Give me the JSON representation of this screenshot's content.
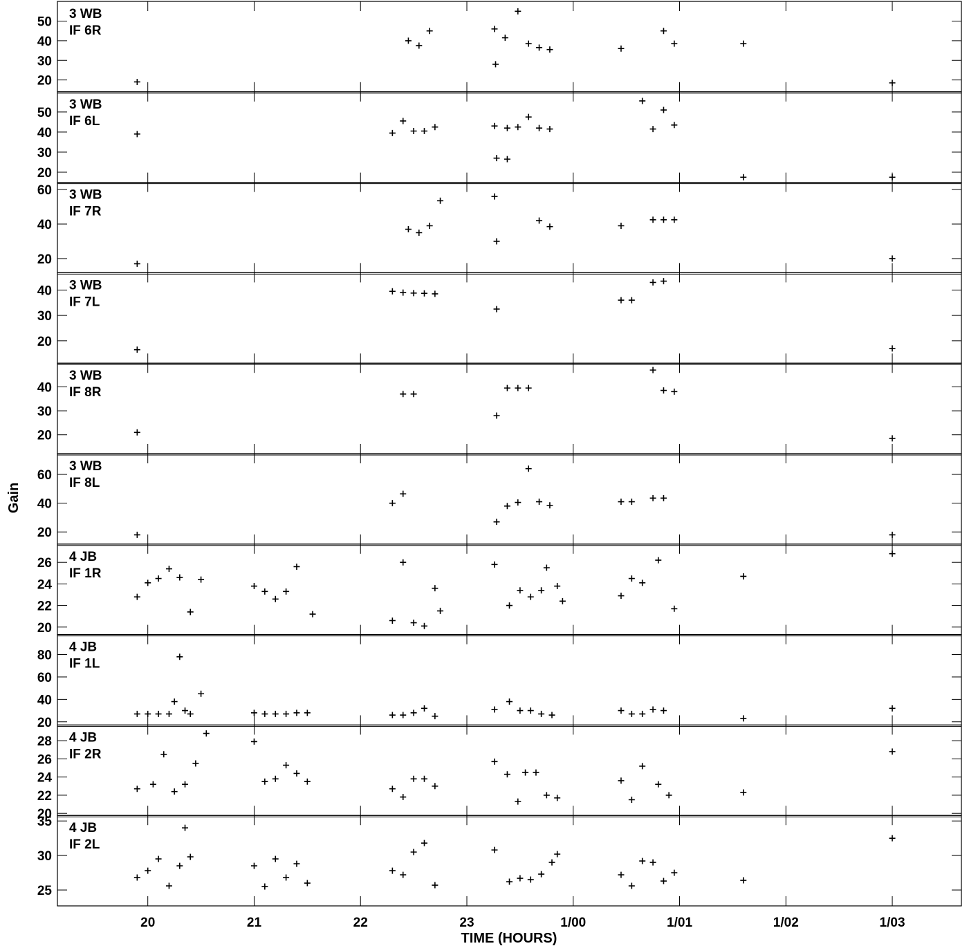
{
  "chart_data": {
    "type": "scatter",
    "ylabel": "Gain",
    "xlabel": "TIME (HOURS)",
    "x_unit": "hours (24 = 1/00)",
    "xlim": [
      19.15,
      27.65
    ],
    "x_ticks": [
      {
        "value": 20,
        "label": "20"
      },
      {
        "value": 21,
        "label": "21"
      },
      {
        "value": 22,
        "label": "22"
      },
      {
        "value": 23,
        "label": "23"
      },
      {
        "value": 24,
        "label": "1/00"
      },
      {
        "value": 25,
        "label": "1/01"
      },
      {
        "value": 26,
        "label": "1/02"
      },
      {
        "value": 27,
        "label": "1/03"
      }
    ],
    "panels": [
      {
        "line1": "3 WB",
        "line2": "IF 6R",
        "ylim": [
          15,
          59
        ],
        "yticks": [
          20,
          30,
          40,
          50
        ],
        "tick_labels": [
          "20",
          "30",
          "40",
          "50"
        ],
        "points": [
          [
            19.9,
            19
          ],
          [
            22.45,
            40
          ],
          [
            22.55,
            37.5
          ],
          [
            22.65,
            45
          ],
          [
            23.26,
            46
          ],
          [
            23.27,
            28
          ],
          [
            23.36,
            41.5
          ],
          [
            23.48,
            55
          ],
          [
            23.58,
            38.5
          ],
          [
            23.68,
            36.5
          ],
          [
            23.78,
            35.5
          ],
          [
            24.45,
            36
          ],
          [
            24.85,
            45
          ],
          [
            24.95,
            38.5
          ],
          [
            25.6,
            38.5
          ],
          [
            27.0,
            18.5
          ]
        ]
      },
      {
        "line1": "3 WB",
        "line2": "IF 6L",
        "ylim": [
          16,
          59
        ],
        "yticks": [
          20,
          30,
          40,
          50
        ],
        "tick_labels": [
          "20",
          "30",
          "40",
          "50"
        ],
        "points": [
          [
            19.9,
            39
          ],
          [
            22.3,
            39.5
          ],
          [
            22.4,
            45.5
          ],
          [
            22.5,
            40.5
          ],
          [
            22.6,
            40.5
          ],
          [
            22.7,
            42.5
          ],
          [
            23.26,
            43
          ],
          [
            23.28,
            27
          ],
          [
            23.38,
            26.5
          ],
          [
            23.38,
            42
          ],
          [
            23.48,
            42.5
          ],
          [
            23.58,
            47.5
          ],
          [
            23.68,
            42
          ],
          [
            23.78,
            41.5
          ],
          [
            24.65,
            55.5
          ],
          [
            24.75,
            41.5
          ],
          [
            24.85,
            51
          ],
          [
            24.95,
            43.5
          ],
          [
            25.6,
            17.5
          ],
          [
            27.0,
            17.5
          ]
        ]
      },
      {
        "line1": "3 WB",
        "line2": "IF 7R",
        "ylim": [
          13,
          63
        ],
        "yticks": [
          20,
          40,
          60
        ],
        "tick_labels": [
          "20",
          "40",
          "60"
        ],
        "points": [
          [
            19.9,
            17
          ],
          [
            22.45,
            37
          ],
          [
            22.55,
            35
          ],
          [
            22.65,
            39
          ],
          [
            22.75,
            53.5
          ],
          [
            23.26,
            56
          ],
          [
            23.28,
            30
          ],
          [
            23.68,
            42
          ],
          [
            23.78,
            38.5
          ],
          [
            24.45,
            39
          ],
          [
            24.75,
            42.5
          ],
          [
            24.85,
            42.5
          ],
          [
            24.95,
            42.5
          ],
          [
            27.0,
            20
          ]
        ]
      },
      {
        "line1": "3 WB",
        "line2": "IF 7L",
        "ylim": [
          12,
          46
        ],
        "yticks": [
          20,
          30,
          40
        ],
        "tick_labels": [
          "20",
          "30",
          "40"
        ],
        "points": [
          [
            19.9,
            16.5
          ],
          [
            22.3,
            39.5
          ],
          [
            22.4,
            39
          ],
          [
            22.5,
            38.8
          ],
          [
            22.6,
            38.7
          ],
          [
            22.7,
            38.5
          ],
          [
            23.28,
            32.5
          ],
          [
            24.45,
            36
          ],
          [
            24.55,
            36
          ],
          [
            24.75,
            43
          ],
          [
            24.85,
            43.5
          ],
          [
            27.0,
            17
          ]
        ]
      },
      {
        "line1": "3 WB",
        "line2": "IF 8R",
        "ylim": [
          13,
          49
        ],
        "yticks": [
          20,
          30,
          40
        ],
        "tick_labels": [
          "20",
          "30",
          "40"
        ],
        "points": [
          [
            19.9,
            21
          ],
          [
            22.4,
            37
          ],
          [
            22.5,
            37
          ],
          [
            23.28,
            28
          ],
          [
            23.38,
            39.5
          ],
          [
            23.48,
            39.5
          ],
          [
            23.58,
            39.5
          ],
          [
            24.75,
            47
          ],
          [
            24.85,
            38.5
          ],
          [
            24.95,
            38
          ],
          [
            27.0,
            18.5
          ]
        ]
      },
      {
        "line1": "3 WB",
        "line2": "IF 8L",
        "ylim": [
          13,
          73
        ],
        "yticks": [
          20,
          40,
          60
        ],
        "tick_labels": [
          "20",
          "40",
          "60"
        ],
        "points": [
          [
            19.9,
            18
          ],
          [
            22.3,
            40
          ],
          [
            22.4,
            46.5
          ],
          [
            23.28,
            27
          ],
          [
            23.38,
            38
          ],
          [
            23.48,
            40.5
          ],
          [
            23.58,
            64
          ],
          [
            23.68,
            41
          ],
          [
            23.78,
            38.5
          ],
          [
            24.45,
            41
          ],
          [
            24.55,
            41
          ],
          [
            24.75,
            43.5
          ],
          [
            24.85,
            43.5
          ],
          [
            27.0,
            18
          ]
        ]
      },
      {
        "line1": "4 JB",
        "line2": "IF 1R",
        "ylim": [
          19.5,
          27.5
        ],
        "yticks": [
          20,
          22,
          24,
          26
        ],
        "tick_labels": [
          "20",
          "22",
          "24",
          "26"
        ],
        "points": [
          [
            19.9,
            22.8
          ],
          [
            20.0,
            24.1
          ],
          [
            20.1,
            24.5
          ],
          [
            20.2,
            25.4
          ],
          [
            20.3,
            24.6
          ],
          [
            20.4,
            21.4
          ],
          [
            20.5,
            24.4
          ],
          [
            21.0,
            23.8
          ],
          [
            21.1,
            23.3
          ],
          [
            21.2,
            22.6
          ],
          [
            21.3,
            23.3
          ],
          [
            21.4,
            25.6
          ],
          [
            21.55,
            21.2
          ],
          [
            22.3,
            20.6
          ],
          [
            22.4,
            26.0
          ],
          [
            22.5,
            20.4
          ],
          [
            22.6,
            20.1
          ],
          [
            22.7,
            23.6
          ],
          [
            22.75,
            21.5
          ],
          [
            23.26,
            25.8
          ],
          [
            23.4,
            22.0
          ],
          [
            23.5,
            23.4
          ],
          [
            23.6,
            22.8
          ],
          [
            23.7,
            23.4
          ],
          [
            23.75,
            25.5
          ],
          [
            23.85,
            23.8
          ],
          [
            23.9,
            22.4
          ],
          [
            24.45,
            22.9
          ],
          [
            24.55,
            24.5
          ],
          [
            24.65,
            24.1
          ],
          [
            24.8,
            26.2
          ],
          [
            24.95,
            21.7
          ],
          [
            25.6,
            24.7
          ],
          [
            27.0,
            26.8
          ]
        ]
      },
      {
        "line1": "4 JB",
        "line2": "IF 1L",
        "ylim": [
          19,
          96
        ],
        "yticks": [
          20,
          40,
          60,
          80
        ],
        "tick_labels": [
          "20",
          "40",
          "60",
          "80"
        ],
        "points": [
          [
            19.9,
            27
          ],
          [
            20.0,
            27
          ],
          [
            20.1,
            27
          ],
          [
            20.2,
            27
          ],
          [
            20.25,
            38
          ],
          [
            20.3,
            78
          ],
          [
            20.35,
            30
          ],
          [
            20.4,
            27
          ],
          [
            20.5,
            45
          ],
          [
            21.0,
            28
          ],
          [
            21.1,
            27
          ],
          [
            21.2,
            27
          ],
          [
            21.3,
            27
          ],
          [
            21.4,
            28
          ],
          [
            21.5,
            28
          ],
          [
            22.3,
            26
          ],
          [
            22.4,
            26
          ],
          [
            22.5,
            28
          ],
          [
            22.6,
            32
          ],
          [
            22.7,
            25
          ],
          [
            23.26,
            31
          ],
          [
            23.4,
            38
          ],
          [
            23.5,
            30
          ],
          [
            23.6,
            30
          ],
          [
            23.7,
            27
          ],
          [
            23.8,
            26
          ],
          [
            24.45,
            30
          ],
          [
            24.55,
            27
          ],
          [
            24.65,
            27
          ],
          [
            24.75,
            31
          ],
          [
            24.85,
            30
          ],
          [
            25.6,
            23
          ],
          [
            27.0,
            32
          ]
        ]
      },
      {
        "line1": "4 JB",
        "line2": "IF 2R",
        "ylim": [
          20,
          29.5
        ],
        "yticks": [
          20,
          22,
          24,
          26,
          28
        ],
        "tick_labels": [
          "20",
          "22",
          "24",
          "26",
          "28"
        ],
        "points": [
          [
            19.9,
            22.7
          ],
          [
            20.05,
            23.2
          ],
          [
            20.15,
            26.5
          ],
          [
            20.25,
            22.4
          ],
          [
            20.35,
            23.2
          ],
          [
            20.45,
            25.5
          ],
          [
            20.55,
            28.8
          ],
          [
            21.0,
            27.9
          ],
          [
            21.1,
            23.5
          ],
          [
            21.2,
            23.8
          ],
          [
            21.3,
            25.3
          ],
          [
            21.4,
            24.4
          ],
          [
            21.5,
            23.5
          ],
          [
            22.3,
            22.7
          ],
          [
            22.4,
            21.8
          ],
          [
            22.5,
            23.8
          ],
          [
            22.6,
            23.8
          ],
          [
            22.7,
            23.0
          ],
          [
            23.26,
            25.7
          ],
          [
            23.38,
            24.3
          ],
          [
            23.48,
            21.3
          ],
          [
            23.55,
            24.5
          ],
          [
            23.65,
            24.5
          ],
          [
            23.75,
            22.0
          ],
          [
            23.85,
            21.7
          ],
          [
            24.45,
            23.6
          ],
          [
            24.55,
            21.5
          ],
          [
            24.65,
            25.2
          ],
          [
            24.8,
            23.2
          ],
          [
            24.9,
            22.0
          ],
          [
            25.6,
            22.3
          ],
          [
            27.0,
            26.8
          ]
        ]
      },
      {
        "line1": "4 JB",
        "line2": "IF 2L",
        "ylim": [
          23,
          35.5
        ],
        "yticks": [
          25,
          30,
          35
        ],
        "tick_labels": [
          "25",
          "30",
          "35"
        ],
        "points": [
          [
            19.9,
            26.8
          ],
          [
            20.0,
            27.8
          ],
          [
            20.1,
            29.5
          ],
          [
            20.2,
            25.6
          ],
          [
            20.3,
            28.5
          ],
          [
            20.35,
            34
          ],
          [
            20.4,
            29.8
          ],
          [
            21.0,
            28.5
          ],
          [
            21.1,
            25.5
          ],
          [
            21.2,
            29.5
          ],
          [
            21.3,
            26.8
          ],
          [
            21.4,
            28.8
          ],
          [
            21.5,
            26.0
          ],
          [
            22.3,
            27.8
          ],
          [
            22.4,
            27.2
          ],
          [
            22.5,
            30.5
          ],
          [
            22.6,
            31.8
          ],
          [
            22.7,
            25.7
          ],
          [
            23.26,
            30.8
          ],
          [
            23.4,
            26.2
          ],
          [
            23.5,
            26.7
          ],
          [
            23.6,
            26.5
          ],
          [
            23.7,
            27.3
          ],
          [
            23.8,
            29.0
          ],
          [
            23.85,
            30.2
          ],
          [
            24.45,
            27.2
          ],
          [
            24.55,
            25.6
          ],
          [
            24.65,
            29.2
          ],
          [
            24.75,
            29.0
          ],
          [
            24.85,
            26.3
          ],
          [
            24.95,
            27.5
          ],
          [
            25.6,
            26.4
          ],
          [
            27.0,
            32.5
          ]
        ]
      }
    ]
  }
}
